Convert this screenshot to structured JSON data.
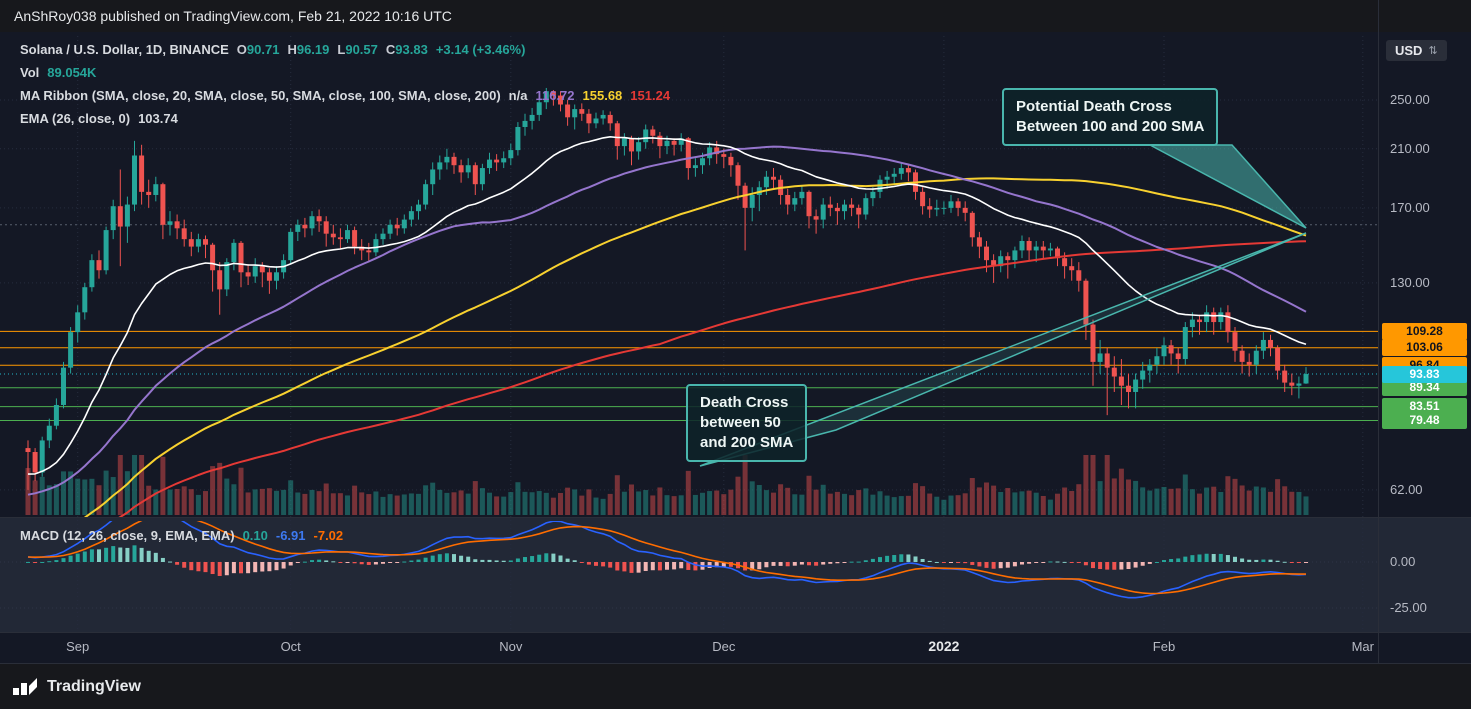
{
  "publisher_bar": {
    "text": "AnShRoy038 published on TradingView.com, Feb 21, 2022 10:16 UTC"
  },
  "legend": {
    "title": "Solana / U.S. Dollar, 1D, BINANCE",
    "o_label": "O",
    "o": "90.71",
    "h_label": "H",
    "h": "96.19",
    "l_label": "L",
    "l": "90.57",
    "c_label": "C",
    "c": "93.83",
    "change": "+3.14 (+3.46%)",
    "vol_label": "Vol",
    "vol": "89.054K",
    "ribbon_label": "MA Ribbon (SMA, close, 20, SMA, close, 50, SMA, close, 100, SMA, close, 200)",
    "ribbon_v1": "n/a",
    "ribbon_v2": "116.72",
    "ribbon_v3": "155.68",
    "ribbon_v4": "151.24",
    "ema_label": "EMA (26, close, 0)",
    "ema_value": "103.74",
    "macd_label": "MACD (12, 26, close, 9, EMA, EMA)",
    "macd_v1": "0.10",
    "macd_v2": "-6.91",
    "macd_v3": "-7.02"
  },
  "annotations": [
    {
      "name": "potential-death-cross",
      "lines": [
        "Potential Death Cross",
        "Between 100 and 200 SMA"
      ]
    },
    {
      "name": "death-cross",
      "lines": [
        "Death Cross",
        "between 50",
        "and 200 SMA"
      ]
    }
  ],
  "axis": {
    "currency_label": "USD"
  },
  "footer": {
    "brand": "TradingView"
  },
  "chart_data": {
    "type": "candlestick",
    "title": "Solana / U.S. Dollar, 1D, BINANCE",
    "interval": "1D",
    "exchange": "BINANCE",
    "currency": "USD",
    "scale": "log",
    "price_ticks": [
      {
        "label": "250.00",
        "value": 250
      },
      {
        "label": "210.00",
        "value": 210
      },
      {
        "label": "170.00",
        "value": 170
      },
      {
        "label": "130.00",
        "value": 130
      },
      {
        "label": "62.00",
        "value": 62
      }
    ],
    "time_ticks": [
      {
        "label": "Sep",
        "i": 7
      },
      {
        "label": "Oct",
        "i": 37
      },
      {
        "label": "Nov",
        "i": 68
      },
      {
        "label": "Dec",
        "i": 98
      },
      {
        "label": "2022",
        "i": 129
      },
      {
        "label": "Feb",
        "i": 160
      },
      {
        "label": "Mar",
        "i": 188
      }
    ],
    "price_tags": [
      {
        "label": "109.28",
        "value": 109.28,
        "bg": "#ff9800",
        "fg": "#10141f",
        "primary": false
      },
      {
        "label": "103.06",
        "value": 103.06,
        "bg": "#ff9800",
        "fg": "#10141f",
        "primary": false
      },
      {
        "label": "96.84",
        "value": 96.84,
        "bg": "#ff9800",
        "fg": "#10141f",
        "primary": false
      },
      {
        "label": "93.83",
        "value": 93.83,
        "bg": "#26c6da",
        "fg": "#ffffff",
        "primary": true
      },
      {
        "label": "89.34",
        "value": 89.34,
        "bg": "#4caf50",
        "fg": "#ffffff",
        "primary": false
      },
      {
        "label": "83.51",
        "value": 83.51,
        "bg": "#4caf50",
        "fg": "#ffffff",
        "primary": false
      },
      {
        "label": "79.48",
        "value": 79.48,
        "bg": "#4caf50",
        "fg": "#ffffff",
        "primary": false
      }
    ],
    "level_lines": {
      "orange": [
        109.28,
        103.06,
        96.84
      ],
      "green": [
        89.34,
        83.51,
        79.48
      ],
      "current_dotted": 93.83,
      "cross_dotted": 160
    },
    "last_values": {
      "open": 90.71,
      "high": 96.19,
      "low": 90.57,
      "close": 93.83,
      "change": "+3.14 (+3.46%)",
      "volume": "89.054K",
      "ema26": 103.74,
      "sma20": "n/a",
      "sma50": 116.72,
      "sma100": 155.68,
      "sma200": 151.24
    },
    "macd": {
      "label": "MACD (12, 26, close, 9, EMA, EMA)",
      "ticks": [
        {
          "label": "0.00",
          "value": 0
        },
        {
          "label": "-25.00",
          "value": -25
        }
      ],
      "last": {
        "hist": 0.1,
        "macd": -6.91,
        "signal": -7.02
      }
    },
    "ma_colors": {
      "ema26": "#ffffff",
      "sma50": "#9575cd",
      "sma100": "#f8d12f",
      "sma200": "#e53935"
    },
    "candle_colors": {
      "up": "#26a69a",
      "down": "#ef5350"
    },
    "ma_prehistory": {
      "days": 110,
      "from": 28,
      "to": 70
    },
    "candles": [
      [
        72,
        74,
        62,
        71
      ],
      [
        71,
        72,
        64,
        66
      ],
      [
        66,
        75,
        65,
        74
      ],
      [
        74,
        80,
        72,
        78
      ],
      [
        78,
        86,
        77,
        84
      ],
      [
        84,
        98,
        83,
        96
      ],
      [
        96,
        111,
        94,
        109
      ],
      [
        109,
        120,
        105,
        117
      ],
      [
        117,
        130,
        114,
        128
      ],
      [
        128,
        144,
        126,
        141
      ],
      [
        141,
        146,
        132,
        136
      ],
      [
        136,
        159,
        134,
        157
      ],
      [
        157,
        175,
        152,
        171
      ],
      [
        171,
        195,
        138,
        159
      ],
      [
        159,
        177,
        150,
        172
      ],
      [
        172,
        216,
        168,
        205
      ],
      [
        205,
        213,
        172,
        180
      ],
      [
        180,
        188,
        170,
        178
      ],
      [
        178,
        190,
        174,
        185
      ],
      [
        185,
        186,
        152,
        160
      ],
      [
        160,
        168,
        154,
        162
      ],
      [
        162,
        166,
        152,
        158
      ],
      [
        158,
        163,
        148,
        152
      ],
      [
        152,
        156,
        143,
        148
      ],
      [
        148,
        155,
        145,
        152
      ],
      [
        152,
        154,
        142,
        149
      ],
      [
        149,
        150,
        126,
        136
      ],
      [
        136,
        140,
        116,
        127
      ],
      [
        127,
        142,
        124,
        140
      ],
      [
        140,
        152,
        136,
        150
      ],
      [
        150,
        151,
        128,
        135
      ],
      [
        135,
        139,
        129,
        133
      ],
      [
        133,
        142,
        130,
        138
      ],
      [
        138,
        140,
        128,
        135
      ],
      [
        135,
        137,
        125,
        131
      ],
      [
        131,
        138,
        127,
        135
      ],
      [
        135,
        144,
        132,
        141
      ],
      [
        141,
        158,
        139,
        156
      ],
      [
        156,
        163,
        151,
        160
      ],
      [
        160,
        164,
        153,
        158
      ],
      [
        158,
        168,
        154,
        165
      ],
      [
        165,
        169,
        156,
        162
      ],
      [
        162,
        165,
        148,
        155
      ],
      [
        155,
        160,
        149,
        153
      ],
      [
        153,
        158,
        147,
        152
      ],
      [
        152,
        160,
        150,
        157
      ],
      [
        157,
        159,
        144,
        148
      ],
      [
        148,
        152,
        141,
        146
      ],
      [
        146,
        150,
        140,
        145
      ],
      [
        145,
        155,
        143,
        152
      ],
      [
        152,
        158,
        149,
        155
      ],
      [
        155,
        163,
        152,
        160
      ],
      [
        160,
        164,
        154,
        158
      ],
      [
        158,
        166,
        155,
        163
      ],
      [
        163,
        171,
        159,
        168
      ],
      [
        168,
        175,
        163,
        172
      ],
      [
        172,
        188,
        169,
        185
      ],
      [
        185,
        200,
        178,
        195
      ],
      [
        195,
        205,
        188,
        200
      ],
      [
        200,
        210,
        195,
        204
      ],
      [
        204,
        207,
        192,
        198
      ],
      [
        198,
        202,
        186,
        193
      ],
      [
        193,
        203,
        189,
        198
      ],
      [
        198,
        200,
        178,
        185
      ],
      [
        185,
        199,
        181,
        196
      ],
      [
        196,
        207,
        192,
        202
      ],
      [
        202,
        206,
        194,
        200
      ],
      [
        200,
        208,
        196,
        203
      ],
      [
        203,
        214,
        198,
        209
      ],
      [
        209,
        231,
        205,
        227
      ],
      [
        227,
        238,
        220,
        232
      ],
      [
        232,
        243,
        225,
        237
      ],
      [
        237,
        252,
        232,
        248
      ],
      [
        248,
        261,
        242,
        258
      ],
      [
        258,
        259,
        245,
        254
      ],
      [
        254,
        258,
        240,
        246
      ],
      [
        246,
        250,
        228,
        235
      ],
      [
        235,
        246,
        225,
        242
      ],
      [
        242,
        247,
        232,
        238
      ],
      [
        238,
        242,
        222,
        230
      ],
      [
        230,
        239,
        226,
        234
      ],
      [
        234,
        241,
        229,
        237
      ],
      [
        237,
        240,
        224,
        230
      ],
      [
        230,
        232,
        202,
        212
      ],
      [
        212,
        222,
        205,
        218
      ],
      [
        218,
        220,
        198,
        208
      ],
      [
        208,
        219,
        202,
        215
      ],
      [
        215,
        229,
        210,
        225
      ],
      [
        225,
        228,
        214,
        220
      ],
      [
        220,
        223,
        203,
        212
      ],
      [
        212,
        220,
        206,
        216
      ],
      [
        216,
        218,
        205,
        213
      ],
      [
        213,
        222,
        208,
        218
      ],
      [
        218,
        219,
        188,
        196
      ],
      [
        196,
        203,
        190,
        198
      ],
      [
        198,
        207,
        192,
        203
      ],
      [
        203,
        215,
        198,
        211
      ],
      [
        211,
        216,
        199,
        206
      ],
      [
        206,
        210,
        196,
        204
      ],
      [
        204,
        207,
        190,
        198
      ],
      [
        198,
        200,
        175,
        184
      ],
      [
        184,
        186,
        146,
        170
      ],
      [
        170,
        183,
        162,
        178
      ],
      [
        178,
        187,
        168,
        183
      ],
      [
        183,
        194,
        178,
        190
      ],
      [
        190,
        196,
        182,
        188
      ],
      [
        188,
        191,
        172,
        178
      ],
      [
        178,
        182,
        166,
        172
      ],
      [
        172,
        180,
        168,
        176
      ],
      [
        176,
        184,
        172,
        180
      ],
      [
        180,
        181,
        158,
        165
      ],
      [
        165,
        169,
        155,
        163
      ],
      [
        163,
        176,
        158,
        172
      ],
      [
        172,
        177,
        165,
        170
      ],
      [
        170,
        173,
        160,
        168
      ],
      [
        168,
        175,
        163,
        172
      ],
      [
        172,
        176,
        165,
        170
      ],
      [
        170,
        172,
        158,
        166
      ],
      [
        166,
        179,
        163,
        176
      ],
      [
        176,
        183,
        171,
        180
      ],
      [
        180,
        191,
        176,
        188
      ],
      [
        188,
        194,
        182,
        190
      ],
      [
        190,
        196,
        185,
        192
      ],
      [
        192,
        200,
        188,
        196
      ],
      [
        196,
        199,
        187,
        193
      ],
      [
        193,
        195,
        175,
        180
      ],
      [
        180,
        183,
        166,
        171
      ],
      [
        171,
        176,
        164,
        169
      ],
      [
        169,
        175,
        165,
        170
      ],
      [
        170,
        174,
        166,
        170
      ],
      [
        170,
        178,
        167,
        174
      ],
      [
        174,
        176,
        165,
        170
      ],
      [
        170,
        174,
        162,
        167
      ],
      [
        167,
        168,
        148,
        153
      ],
      [
        153,
        156,
        142,
        148
      ],
      [
        148,
        151,
        135,
        141
      ],
      [
        141,
        144,
        130,
        138
      ],
      [
        138,
        146,
        135,
        143
      ],
      [
        143,
        145,
        132,
        141
      ],
      [
        141,
        148,
        137,
        146
      ],
      [
        146,
        154,
        142,
        151
      ],
      [
        151,
        153,
        141,
        146
      ],
      [
        146,
        151,
        140,
        148
      ],
      [
        148,
        151,
        142,
        146
      ],
      [
        146,
        150,
        143,
        147
      ],
      [
        147,
        148,
        138,
        142
      ],
      [
        142,
        145,
        132,
        138
      ],
      [
        138,
        142,
        131,
        136
      ],
      [
        136,
        140,
        126,
        131
      ],
      [
        131,
        132,
        106,
        112
      ],
      [
        112,
        114,
        90,
        98
      ],
      [
        98,
        106,
        94,
        101
      ],
      [
        101,
        103,
        81,
        96
      ],
      [
        96,
        100,
        88,
        93
      ],
      [
        93,
        99,
        84,
        90
      ],
      [
        90,
        94,
        83,
        88
      ],
      [
        88,
        94,
        83,
        92
      ],
      [
        92,
        98,
        89,
        95
      ],
      [
        95,
        99,
        91,
        97
      ],
      [
        97,
        103,
        94,
        100
      ],
      [
        100,
        107,
        97,
        104
      ],
      [
        104,
        106,
        97,
        101
      ],
      [
        101,
        103,
        94,
        99
      ],
      [
        99,
        113,
        97,
        111
      ],
      [
        111,
        117,
        107,
        114
      ],
      [
        114,
        116,
        108,
        113
      ],
      [
        113,
        120,
        109,
        117
      ],
      [
        117,
        119,
        108,
        113
      ],
      [
        113,
        119,
        110,
        117
      ],
      [
        117,
        120,
        105,
        109
      ],
      [
        109,
        111,
        98,
        102
      ],
      [
        102,
        104,
        94,
        98
      ],
      [
        98,
        101,
        93,
        97
      ],
      [
        97,
        104,
        94,
        102
      ],
      [
        102,
        109,
        99,
        106
      ],
      [
        106,
        108,
        100,
        103
      ],
      [
        103,
        104,
        92,
        95
      ],
      [
        95,
        97,
        88,
        91
      ],
      [
        91,
        94,
        87,
        90
      ],
      [
        90,
        93,
        86,
        90.71
      ],
      [
        90.71,
        96.19,
        90.57,
        93.83
      ]
    ]
  }
}
